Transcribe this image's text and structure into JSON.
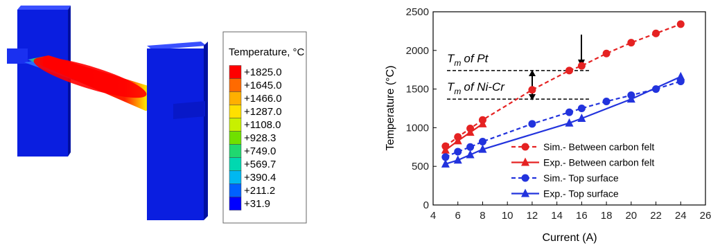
{
  "colorbar": {
    "title": "Temperature, °C",
    "labels": [
      "+1825.0",
      "+1645.0",
      "+1466.0",
      "+1287.0",
      "+1108.0",
      "+928.3",
      "+749.0",
      "+569.7",
      "+390.4",
      "+211.2",
      "+31.9"
    ],
    "colors": [
      "#ff0000",
      "#ff6a00",
      "#ffb000",
      "#ffe000",
      "#c8f000",
      "#70e000",
      "#20d870",
      "#00d8b0",
      "#00b8f0",
      "#0060ff",
      "#0000ff"
    ]
  },
  "chart_data": {
    "type": "line",
    "xlabel": "Current (A)",
    "ylabel": "Temperature (°C)",
    "xlim": [
      4,
      26
    ],
    "xticks": [
      4,
      6,
      8,
      10,
      12,
      14,
      16,
      18,
      20,
      22,
      24,
      26
    ],
    "ylim": [
      0,
      2500
    ],
    "yticks": [
      0,
      500,
      1000,
      1500,
      2000,
      2500
    ],
    "legend": "lower right",
    "series": [
      {
        "name": "Sim.- Between carbon felt",
        "color": "#e52222",
        "dashed": true,
        "marker": "circle",
        "x": [
          5,
          6,
          7,
          8,
          12,
          15,
          16,
          18,
          20,
          22,
          24
        ],
        "values": [
          760,
          880,
          990,
          1100,
          1490,
          1740,
          1800,
          1960,
          2100,
          2220,
          2340
        ]
      },
      {
        "name": "Exp.- Between carbon felt",
        "color": "#e52222",
        "dashed": false,
        "marker": "triangle",
        "x": [
          5,
          6,
          7,
          8
        ],
        "values": [
          710,
          830,
          940,
          1050
        ]
      },
      {
        "name": "Sim.- Top surface",
        "color": "#2233dd",
        "dashed": true,
        "marker": "circle",
        "x": [
          5,
          6,
          7,
          8,
          12,
          15,
          16,
          18,
          20,
          22,
          24
        ],
        "values": [
          620,
          690,
          750,
          820,
          1050,
          1200,
          1250,
          1340,
          1420,
          1500,
          1600
        ]
      },
      {
        "name": "Exp.- Top surface",
        "color": "#2233dd",
        "dashed": false,
        "marker": "triangle",
        "x": [
          5,
          6,
          7,
          8,
          15,
          16,
          20,
          24
        ],
        "values": [
          530,
          580,
          650,
          720,
          1060,
          1120,
          1370,
          1660
        ]
      }
    ],
    "annotations": [
      {
        "symbol": "T",
        "subscript": "m",
        "text": "of Pt",
        "value": 1740
      },
      {
        "symbol": "T",
        "subscript": "m",
        "text": "of Ni-Cr",
        "value": 1370
      }
    ]
  }
}
